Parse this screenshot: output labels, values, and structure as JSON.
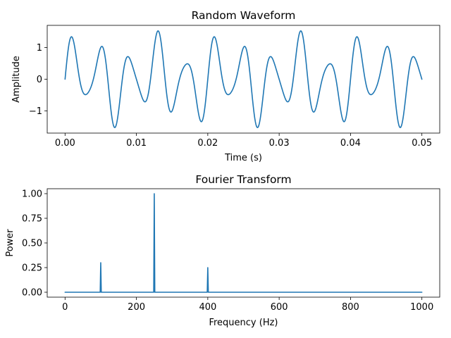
{
  "colors": {
    "series": "#1f77b4"
  },
  "chart_data": [
    {
      "type": "line",
      "title": "Random Waveform",
      "xlabel": "Time (s)",
      "ylabel": "Amplitude",
      "xlim": [
        -0.0025,
        0.0525
      ],
      "ylim": [
        -1.7,
        1.7
      ],
      "xticks": [
        0.0,
        0.01,
        0.02,
        0.03,
        0.04,
        0.05
      ],
      "xticklabels": [
        "0.00",
        "0.01",
        "0.02",
        "0.03",
        "0.04",
        "0.05"
      ],
      "yticks": [
        -1,
        0,
        1
      ],
      "yticklabels": [
        "−1",
        "0",
        "1"
      ],
      "grid": false,
      "signal": {
        "components": [
          {
            "frequency_hz": 250,
            "amplitude": 1.0
          },
          {
            "frequency_hz": 100,
            "amplitude": 0.3
          },
          {
            "frequency_hz": 400,
            "amplitude": 0.25
          }
        ],
        "t_start": 0.0,
        "t_end": 0.05
      }
    },
    {
      "type": "line",
      "title": "Fourier Transform",
      "xlabel": "Frequency (Hz)",
      "ylabel": "Power",
      "xlim": [
        -50,
        1050
      ],
      "ylim": [
        -0.05,
        1.05
      ],
      "xticks": [
        0,
        200,
        400,
        600,
        800,
        1000
      ],
      "xticklabels": [
        "0",
        "200",
        "400",
        "600",
        "800",
        "1000"
      ],
      "yticks": [
        0.0,
        0.25,
        0.5,
        0.75,
        1.0
      ],
      "yticklabels": [
        "0.00",
        "0.25",
        "0.50",
        "0.75",
        "1.00"
      ],
      "grid": false,
      "x_range": [
        0,
        1000
      ],
      "peaks": [
        {
          "x": 100,
          "y": 0.3
        },
        {
          "x": 250,
          "y": 1.0
        },
        {
          "x": 400,
          "y": 0.25
        }
      ]
    }
  ]
}
